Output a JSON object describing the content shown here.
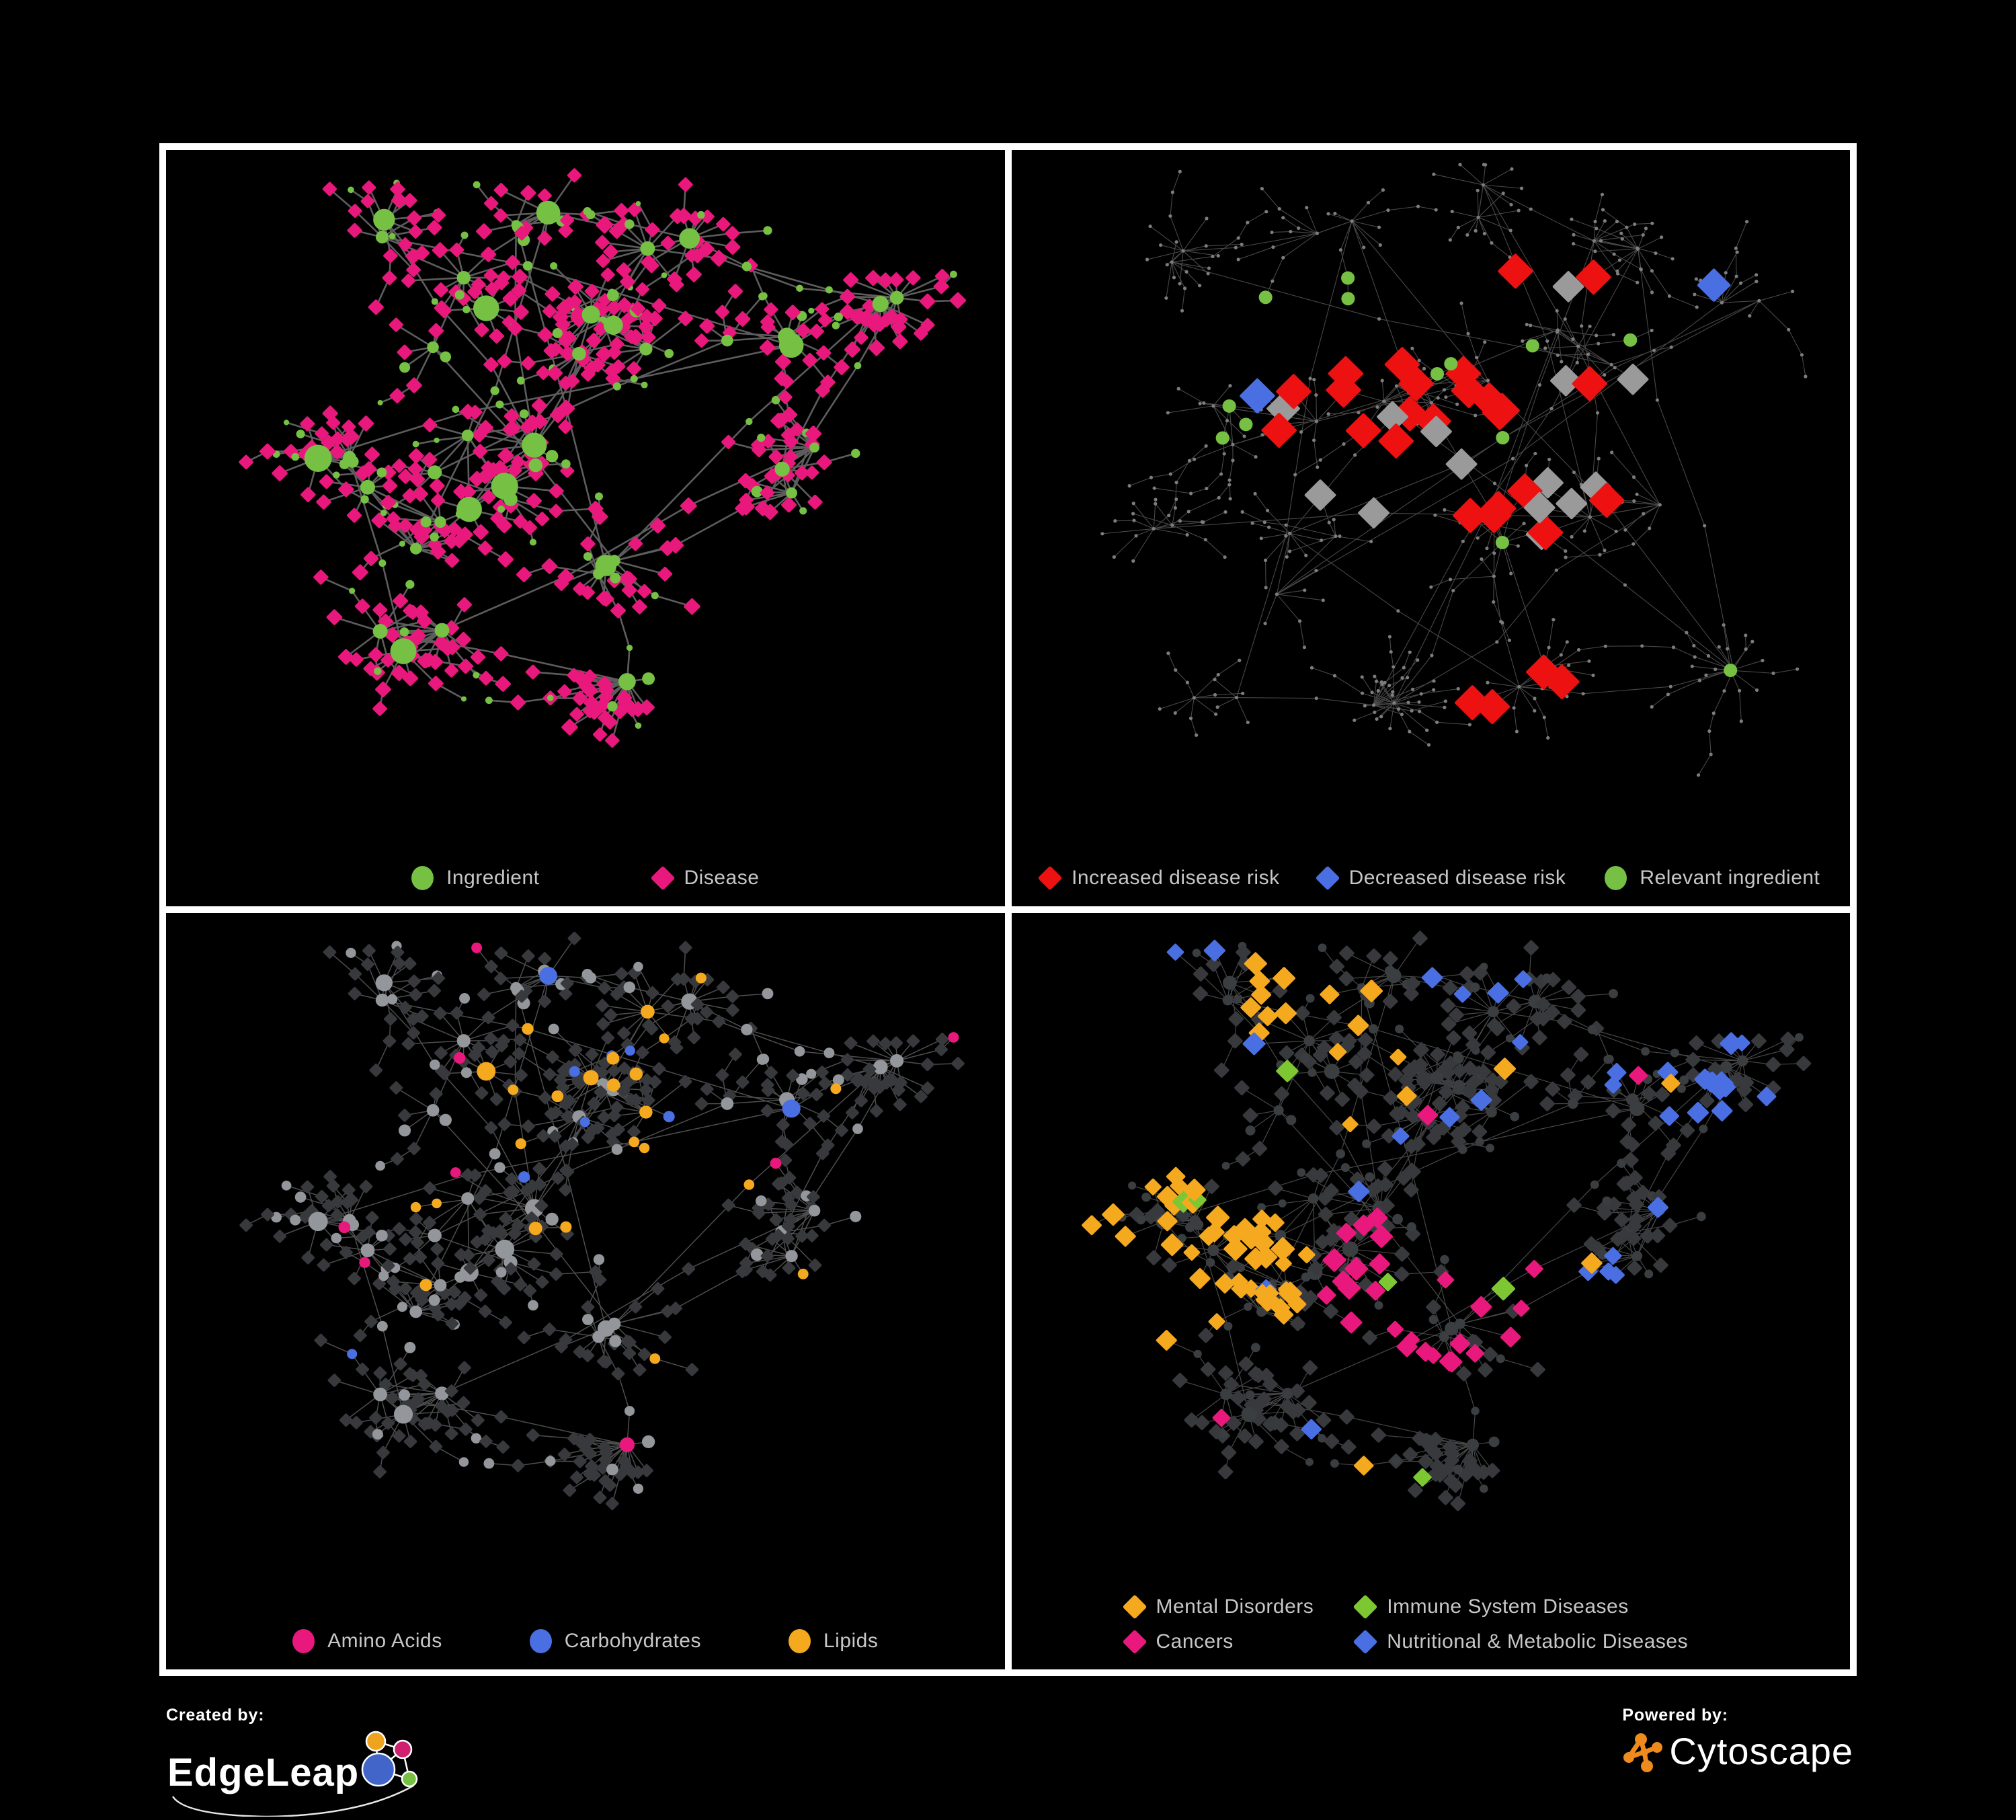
{
  "panels": [
    {
      "name": "ingredient-disease",
      "legend": [
        {
          "label": "Ingredient",
          "shape": "circle",
          "color": "#76c043"
        },
        {
          "label": "Disease",
          "shape": "diamond",
          "color": "#e9187c"
        }
      ]
    },
    {
      "name": "disease-risk",
      "legend": [
        {
          "label": "Increased disease risk",
          "shape": "diamond",
          "color": "#ee1111"
        },
        {
          "label": "Decreased disease risk",
          "shape": "diamond",
          "color": "#4a6fe3"
        },
        {
          "label": "Relevant ingredient",
          "shape": "circle",
          "color": "#76c043"
        }
      ]
    },
    {
      "name": "nutrient-classes",
      "legend": [
        {
          "label": "Amino Acids",
          "shape": "circle",
          "color": "#e9187c"
        },
        {
          "label": "Carbohydrates",
          "shape": "circle",
          "color": "#4a6fe3"
        },
        {
          "label": "Lipids",
          "shape": "circle",
          "color": "#f5a91f"
        }
      ]
    },
    {
      "name": "disease-classes",
      "legend": [
        {
          "label": "Mental Disorders",
          "shape": "diamond",
          "color": "#f5a91f"
        },
        {
          "label": "Cancers",
          "shape": "diamond",
          "color": "#e9187c"
        },
        {
          "label": "Immune System Diseases",
          "shape": "diamond",
          "color": "#7dc832"
        },
        {
          "label": "Nutritional & Metabolic Diseases",
          "shape": "diamond",
          "color": "#4a6fe3"
        }
      ]
    }
  ],
  "footer": {
    "created_by": "Created by:",
    "created_brand": "EdgeLeap",
    "powered_by": "Powered by:",
    "powered_brand": "Cytoscape"
  },
  "colors": {
    "background": "#000000",
    "frame": "#ffffff",
    "legend_text": "#c7c7c7",
    "green": "#76c043",
    "magenta": "#e9187c",
    "red": "#ee1111",
    "blue": "#4a6fe3",
    "orange": "#f5a91f",
    "lime": "#7dc832",
    "gray_node": "#93969a",
    "gray_diamond": "#9a9a9a",
    "dim_diamond": "#37393c",
    "dim_circle": "#3b3e41",
    "tiny_dot": "#7d7d7d",
    "edge_bold": "#5d5d5d",
    "edge_mid": "#4e4e4e",
    "edge_thin": "#484848",
    "edgeleap_blue": "#4165c8",
    "edgeleap_orange": "#f0a31c",
    "edgeleap_pink": "#cf1f6e",
    "edgeleap_green": "#76c043",
    "cytoscape_orange": "#ef8b1d"
  }
}
